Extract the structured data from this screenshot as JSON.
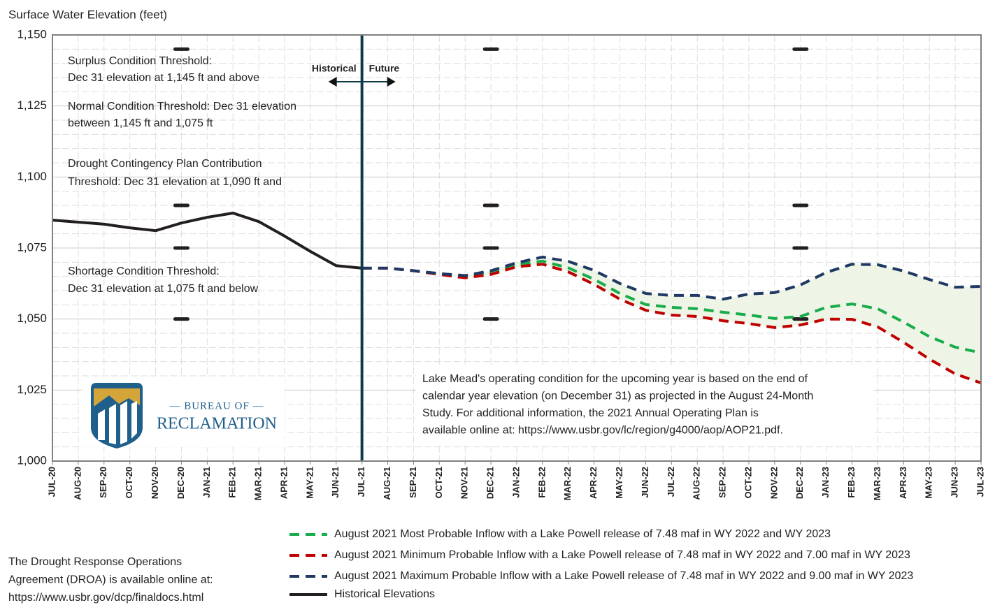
{
  "chart_data": {
    "type": "line",
    "y_label": "Surface Water Elevation (feet)",
    "categories": [
      "JUL-20",
      "AUG-20",
      "SEP-20",
      "OCT-20",
      "NOV-20",
      "DEC-20",
      "JAN-21",
      "FEB-21",
      "MAR-21",
      "APR-21",
      "MAY-21",
      "JUN-21",
      "JUL-21",
      "AUG-21",
      "SEP-21",
      "OCT-21",
      "NOV-21",
      "DEC-21",
      "JAN-22",
      "FEB-22",
      "MAR-22",
      "APR-22",
      "MAY-22",
      "JUN-22",
      "JUL-22",
      "AUG-22",
      "SEP-22",
      "OCT-22",
      "NOV-22",
      "DEC-22",
      "JAN-23",
      "FEB-23",
      "MAR-23",
      "APR-23",
      "MAY-23",
      "JUN-23",
      "JUL-23"
    ],
    "ylim": [
      1000,
      1150
    ],
    "yticks": [
      {
        "value": 1000,
        "label": "1,000"
      },
      {
        "value": 1025,
        "label": "1,025"
      },
      {
        "value": 1050,
        "label": "1,050"
      },
      {
        "value": 1075,
        "label": "1,075"
      },
      {
        "value": 1100,
        "label": "1,100"
      },
      {
        "value": 1125,
        "label": "1,125"
      },
      {
        "value": 1150,
        "label": "1,150"
      }
    ],
    "yminorticks": [
      1005,
      1010,
      1015,
      1020,
      1030,
      1035,
      1040,
      1045,
      1055,
      1060,
      1065,
      1070,
      1080,
      1085,
      1090,
      1095,
      1105,
      1110,
      1115,
      1120,
      1130,
      1135,
      1140,
      1145
    ],
    "grid": true,
    "range_fill": "#eef5e6",
    "series": [
      {
        "name": "August 2021 Most Probable Inflow with a Lake Powell release of 7.48 maf in WY 2022 and WY 2023",
        "color": "#1aab4b",
        "style": "dashed",
        "values": [
          null,
          null,
          null,
          null,
          null,
          null,
          null,
          null,
          null,
          null,
          null,
          null,
          1067.9,
          1067.9,
          1067,
          1065.8,
          1064.7,
          1066.3,
          1069,
          1070.4,
          1068,
          1064,
          1059,
          1055.1,
          1054.1,
          1053.6,
          1052.4,
          1051.4,
          1050.2,
          1050.9,
          1054.1,
          1055.3,
          1053.6,
          1048.9,
          1043.8,
          1040.1,
          1038.1
        ]
      },
      {
        "name": "August 2021 Minimum Probable Inflow with a Lake Powell release of 7.48 maf in WY 2022 and 7.00 maf in WY 2023",
        "color": "#c00000",
        "style": "dashed",
        "values": [
          null,
          null,
          null,
          null,
          null,
          null,
          null,
          null,
          null,
          null,
          null,
          null,
          1067.9,
          1067.9,
          1067,
          1065.7,
          1064.5,
          1065.7,
          1068.4,
          1069.3,
          1066.6,
          1062.2,
          1057,
          1053.1,
          1051.4,
          1050.9,
          1049.4,
          1048.4,
          1047,
          1047.9,
          1050,
          1049.9,
          1047.2,
          1041.8,
          1035.9,
          1030.7,
          1027.5
        ]
      },
      {
        "name": "August 2021 Maximum Probable Inflow with a Lake Powell release of 7.48 maf in WY 2022 and 9.00 maf in WY 2023",
        "color": "#1f3864",
        "style": "dashed",
        "values": [
          null,
          null,
          null,
          null,
          null,
          null,
          null,
          null,
          null,
          null,
          null,
          null,
          1067.9,
          1067.9,
          1067,
          1066,
          1065.3,
          1067,
          1069.8,
          1071.8,
          1070.3,
          1067.1,
          1062.5,
          1059,
          1058.3,
          1058.3,
          1057,
          1058.8,
          1059.3,
          1062,
          1066.4,
          1069.3,
          1069.1,
          1066.9,
          1063.9,
          1061.2,
          1061.5
        ]
      },
      {
        "name": "Historical Elevations",
        "color": "#231f20",
        "style": "solid",
        "values": [
          1084.8,
          1084.1,
          1083.4,
          1082.1,
          1081.1,
          1083.8,
          1085.8,
          1087.3,
          1084.3,
          1079.2,
          1073.8,
          1068.8,
          1067.9,
          null,
          null,
          null,
          null,
          null,
          null,
          null,
          null,
          null,
          null,
          null,
          null,
          null,
          null,
          null,
          null,
          null,
          null,
          null,
          null,
          null,
          null,
          null,
          null
        ]
      }
    ],
    "threshold_markers": [
      {
        "category": "DEC-20",
        "values": [
          1145,
          1090,
          1075,
          1050
        ]
      },
      {
        "category": "DEC-21",
        "values": [
          1145,
          1090,
          1075,
          1050
        ]
      },
      {
        "category": "DEC-22",
        "values": [
          1145,
          1090,
          1075,
          1050
        ]
      }
    ],
    "divider": {
      "category": "JUL-21",
      "left_label": "Historical",
      "right_label": "Future"
    },
    "annotations": [
      [
        "Surplus Condition Threshold:",
        "Dec 31 elevation at 1,145 ft and above"
      ],
      [
        "Normal Condition Threshold: Dec 31 elevation",
        "between 1,145 ft and 1,075 ft"
      ],
      [
        "Drought Contingency Plan Contribution",
        "Threshold: Dec 31 elevation at 1,090 ft and"
      ],
      [
        "Shortage Condition Threshold:",
        "Dec 31 elevation at 1,075 ft and below"
      ]
    ],
    "info_box": [
      "Lake Mead's operating condition for the upcoming year is based on the end of",
      "calendar year elevation (on December 31) as projected in the August 24-Month",
      "Study. For additional information, the 2021 Annual Operating Plan is",
      "available online at: https://www.usbr.gov/lc/region/g4000/aop/AOP21.pdf."
    ],
    "note": [
      "The Drought Response Operations",
      "Agreement (DROA) is available online at:",
      "https://www.usbr.gov/dcp/finaldocs.html"
    ],
    "logo": {
      "top": "— BUREAU OF —",
      "bottom": "RECLAMATION"
    }
  }
}
